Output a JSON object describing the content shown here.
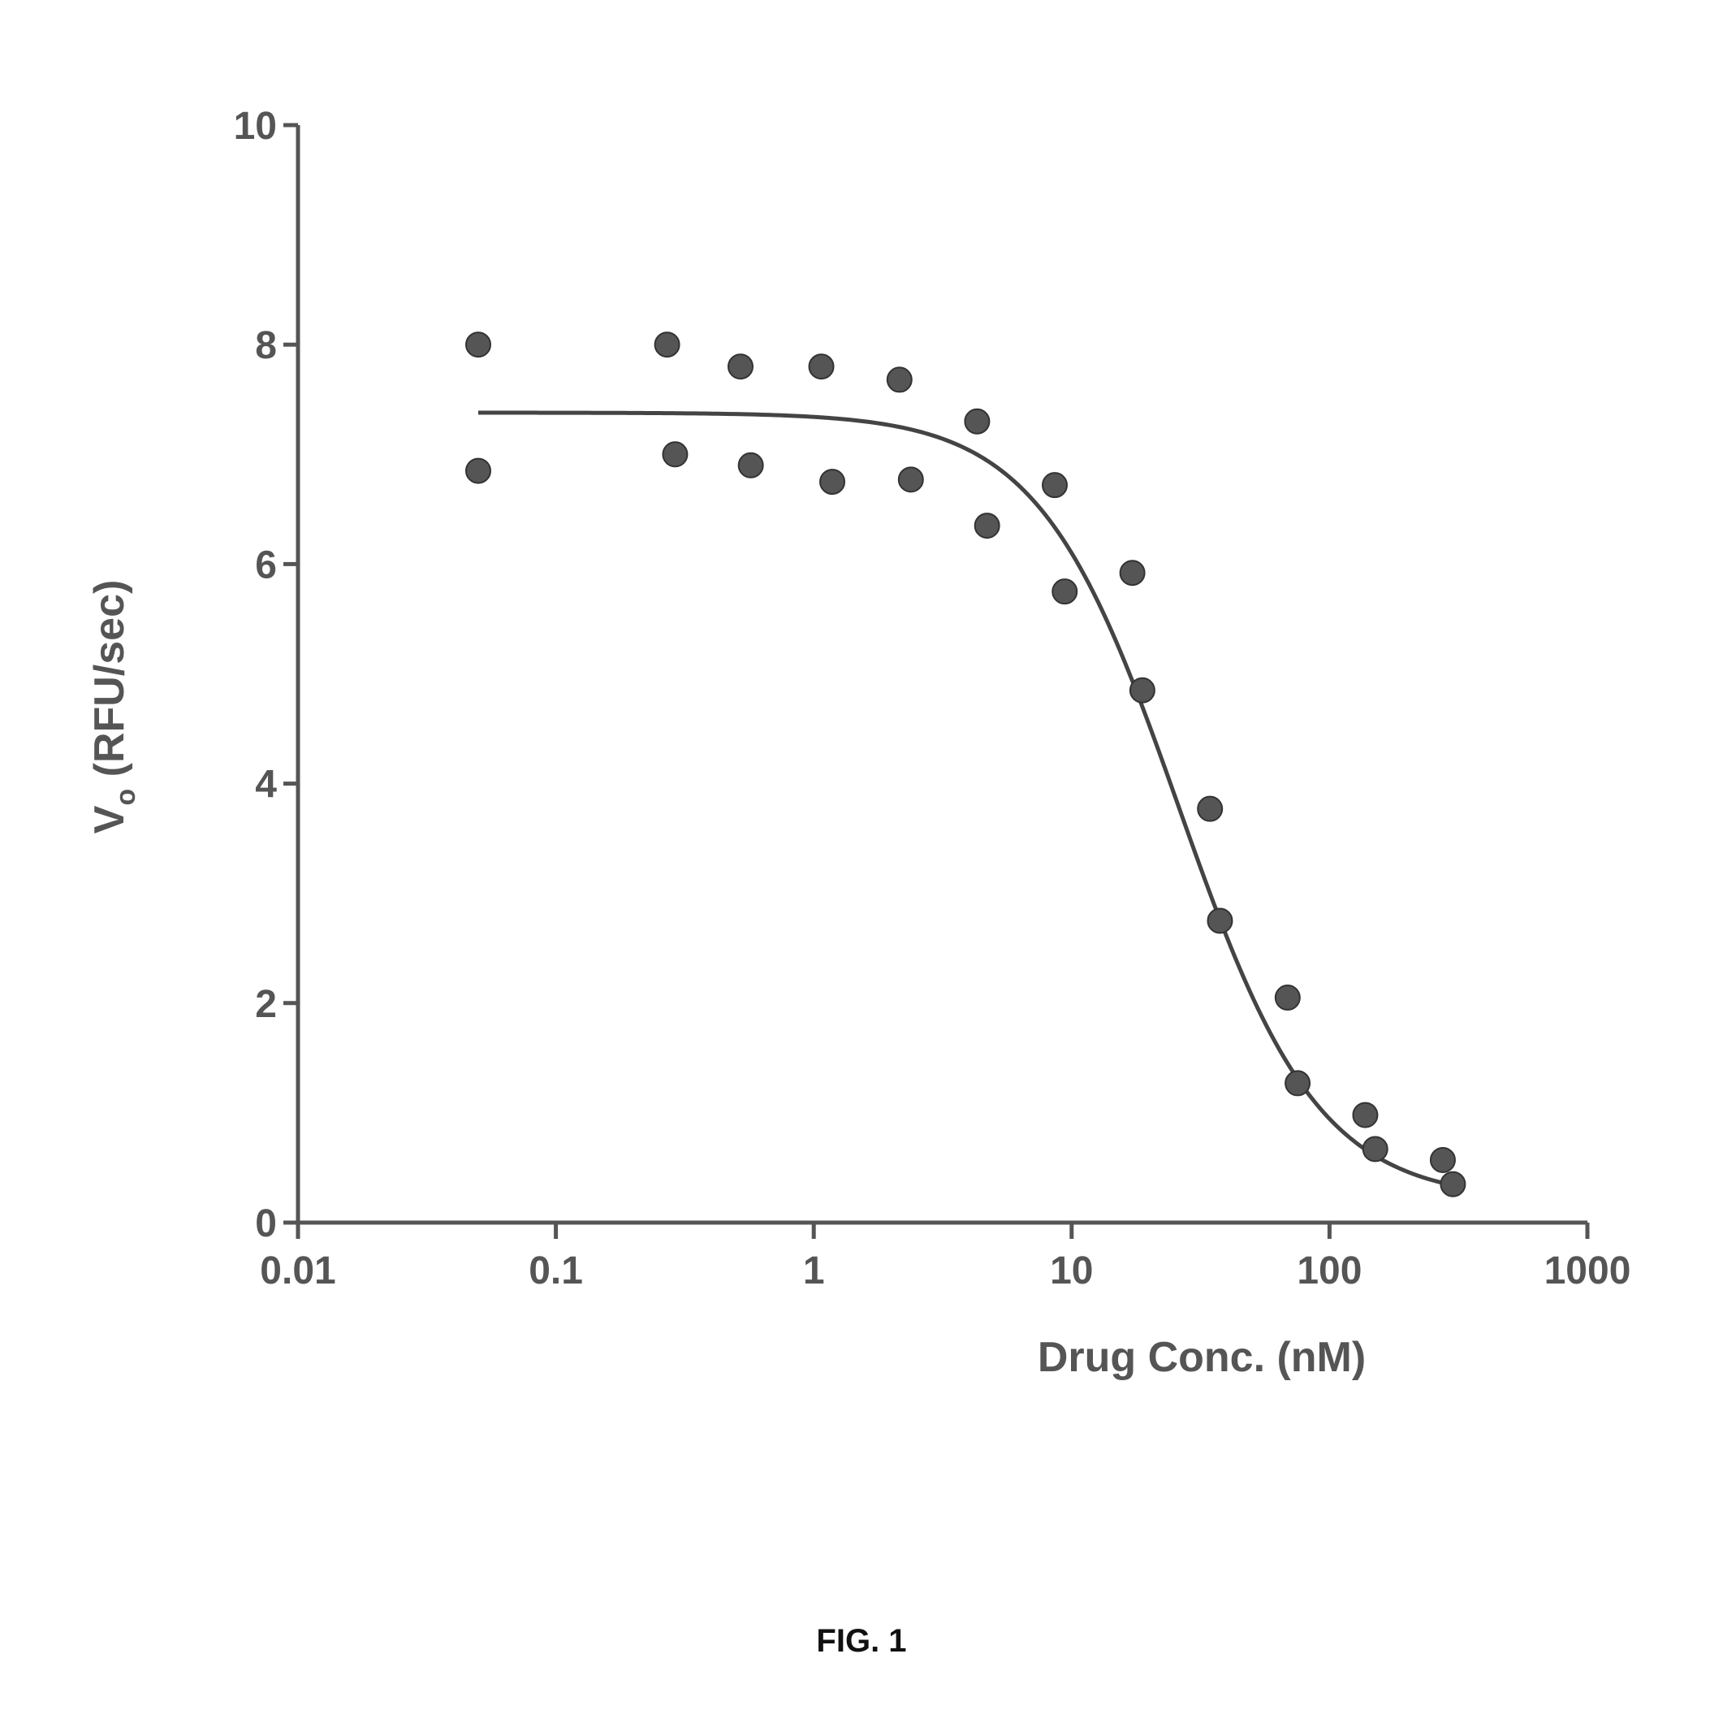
{
  "chart_data": {
    "type": "scatter",
    "xlabel": "Drug Conc. (nM)",
    "ylabel_main": "V",
    "ylabel_sub": "o",
    "ylabel_unit": "(RFU/sec)",
    "x_scale": "log",
    "xlim": [
      0.01,
      1000
    ],
    "ylim": [
      0,
      10
    ],
    "x_ticks": [
      0.01,
      0.1,
      1,
      10,
      100,
      1000
    ],
    "x_tick_labels": [
      "0.01",
      "0.1",
      "1",
      "10",
      "100",
      "1000"
    ],
    "y_ticks": [
      0,
      2,
      4,
      6,
      8,
      10
    ],
    "y_tick_labels": [
      "0",
      "2",
      "4",
      "6",
      "8",
      "10"
    ],
    "grid": false,
    "legend": "none",
    "point_color": "#555555",
    "line_color": "#444444",
    "points": [
      {
        "x": 0.05,
        "y": 8.0
      },
      {
        "x": 0.05,
        "y": 6.85
      },
      {
        "x": 0.27,
        "y": 8.0
      },
      {
        "x": 0.29,
        "y": 7.0
      },
      {
        "x": 0.52,
        "y": 7.8
      },
      {
        "x": 0.57,
        "y": 6.9
      },
      {
        "x": 1.07,
        "y": 7.8
      },
      {
        "x": 1.18,
        "y": 6.75
      },
      {
        "x": 2.15,
        "y": 7.68
      },
      {
        "x": 2.38,
        "y": 6.77
      },
      {
        "x": 4.3,
        "y": 7.3
      },
      {
        "x": 4.7,
        "y": 6.35
      },
      {
        "x": 8.6,
        "y": 6.72
      },
      {
        "x": 9.4,
        "y": 5.75
      },
      {
        "x": 17.2,
        "y": 5.92
      },
      {
        "x": 18.8,
        "y": 4.85
      },
      {
        "x": 34.4,
        "y": 3.77
      },
      {
        "x": 37.6,
        "y": 2.75
      },
      {
        "x": 68.8,
        "y": 2.05
      },
      {
        "x": 75.2,
        "y": 1.27
      },
      {
        "x": 137.6,
        "y": 0.98
      },
      {
        "x": 150.4,
        "y": 0.67
      },
      {
        "x": 275,
        "y": 0.57
      },
      {
        "x": 301,
        "y": 0.35
      }
    ],
    "fit_curve": {
      "model": "four-parameter logistic",
      "top": 7.38,
      "bottom": 0.2,
      "ic50": 26,
      "hill": 1.6,
      "x_range": [
        0.05,
        300
      ]
    }
  },
  "caption": "FIG. 1"
}
